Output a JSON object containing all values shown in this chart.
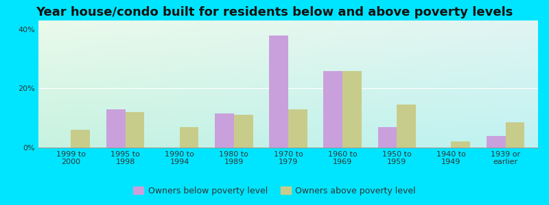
{
  "title": "Year house/condo built for residents below and above poverty levels",
  "categories": [
    "1999 to\n2000",
    "1995 to\n1998",
    "1990 to\n1994",
    "1980 to\n1989",
    "1970 to\n1979",
    "1960 to\n1969",
    "1950 to\n1959",
    "1940 to\n1949",
    "1939 or\nearlier"
  ],
  "below_poverty": [
    0.0,
    13.0,
    0.0,
    11.5,
    38.0,
    26.0,
    7.0,
    0.0,
    4.0
  ],
  "above_poverty": [
    6.0,
    12.0,
    7.0,
    11.0,
    13.0,
    26.0,
    14.5,
    2.0,
    8.5
  ],
  "below_color": "#c9a0dc",
  "above_color": "#c8cc8a",
  "background_outer": "#00e5ff",
  "ylabel_ticks": [
    0,
    20,
    40
  ],
  "ylim": [
    0,
    43
  ],
  "bar_width": 0.35,
  "title_fontsize": 13,
  "tick_fontsize": 8,
  "legend_fontsize": 9,
  "legend_below_label": "Owners below poverty level",
  "legend_above_label": "Owners above poverty level"
}
